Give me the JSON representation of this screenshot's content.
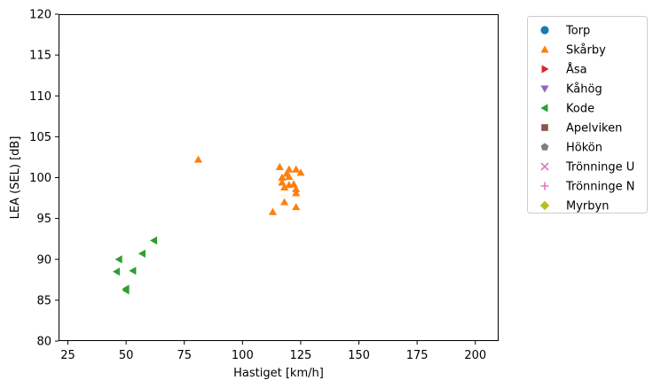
{
  "chart_data": {
    "type": "scatter",
    "xlabel": "Hastiget [km/h]",
    "ylabel": "LEA (SEL) [dB]",
    "xlim": [
      21,
      210
    ],
    "ylim": [
      80,
      120
    ],
    "xticks": [
      25,
      50,
      75,
      100,
      125,
      150,
      175,
      200
    ],
    "yticks": [
      80,
      85,
      90,
      95,
      100,
      105,
      110,
      115,
      120
    ],
    "legend_position": "outside-right-top",
    "series": [
      {
        "name": "Torp",
        "marker": "circle",
        "color": "#1f77b4",
        "points": []
      },
      {
        "name": "Skårby",
        "marker": "triangle-up",
        "color": "#ff7f0e",
        "points": [
          [
            81,
            102.2
          ],
          [
            116,
            101.3
          ],
          [
            119,
            100.5
          ],
          [
            120,
            101.0
          ],
          [
            123,
            101.0
          ],
          [
            125,
            100.6
          ],
          [
            117,
            100.0
          ],
          [
            120,
            100.1
          ],
          [
            117,
            99.4
          ],
          [
            118,
            98.8
          ],
          [
            120,
            99.1
          ],
          [
            122,
            99.2
          ],
          [
            123,
            98.6
          ],
          [
            123,
            98.1
          ],
          [
            118,
            97.0
          ],
          [
            123,
            96.4
          ],
          [
            113,
            95.8
          ]
        ]
      },
      {
        "name": "Åsa",
        "marker": "triangle-right",
        "color": "#d62728",
        "points": []
      },
      {
        "name": "Kåhög",
        "marker": "triangle-down",
        "color": "#9467bd",
        "points": []
      },
      {
        "name": "Kode",
        "marker": "triangle-left",
        "color": "#2ca02c",
        "points": [
          [
            62,
            92.3
          ],
          [
            57,
            90.7
          ],
          [
            47,
            90.0
          ],
          [
            53,
            88.6
          ],
          [
            46,
            88.5
          ],
          [
            50,
            86.4
          ],
          [
            50,
            86.2
          ]
        ]
      },
      {
        "name": "Apelviken",
        "marker": "square",
        "color": "#8c564b",
        "points": []
      },
      {
        "name": "Hökön",
        "marker": "pentagon",
        "color": "#7f7f7f",
        "points": []
      },
      {
        "name": "Trönninge U",
        "marker": "x",
        "color": "#e377c2",
        "points": []
      },
      {
        "name": "Trönninge N",
        "marker": "plus",
        "color": "#e377c2",
        "points": []
      },
      {
        "name": "Myrbyn",
        "marker": "diamond",
        "color": "#bcbd22",
        "points": []
      }
    ]
  }
}
